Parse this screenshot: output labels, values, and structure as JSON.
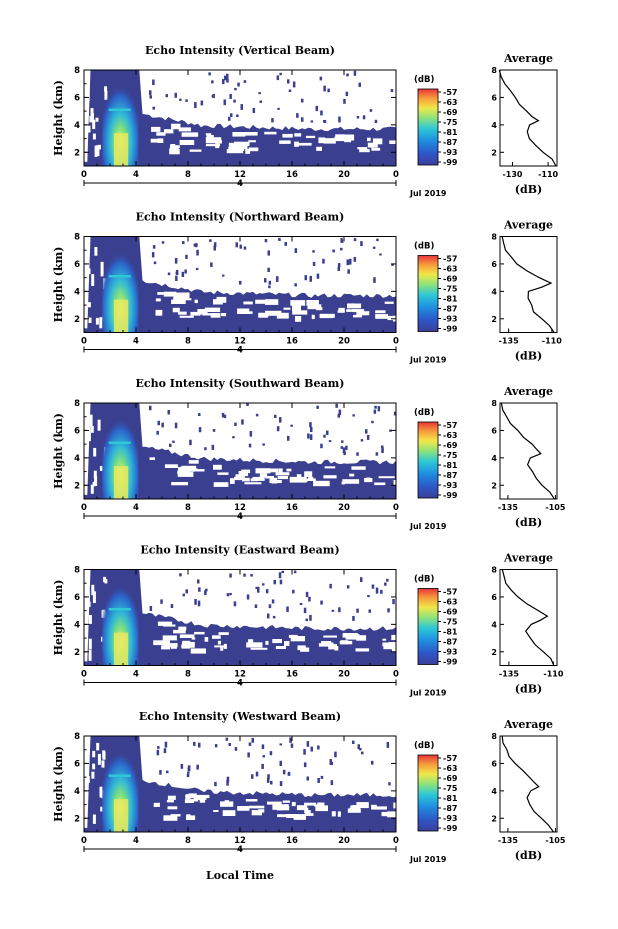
{
  "panels_common": {
    "ylabel": "Height (km)",
    "y_ticks": [
      "2",
      "4",
      "6",
      "8"
    ],
    "x_ticks": [
      "0",
      "4",
      "8",
      "12",
      "16",
      "20",
      "0"
    ],
    "date_center": "4",
    "date_right": "Jul 2019",
    "colorbar_title": "(dB)",
    "colorbar_ticks": [
      "-57",
      "-63",
      "-69",
      "-75",
      "-81",
      "-87",
      "-93",
      "-99"
    ],
    "avg_title": "Average",
    "avg_xlabel": "(dB)"
  },
  "xlabel_bottom": "Local Time",
  "colors": {
    "fill": "#3a3f8f",
    "ink": "#000000",
    "bg": "#ffffff"
  },
  "chart_data": [
    {
      "type": "heatmap",
      "title": "Echo Intensity (Vertical Beam)",
      "xlabel": "Local Time",
      "ylabel": "Height (km)",
      "xlim": [
        0,
        24
      ],
      "ylim": [
        1,
        8
      ],
      "colorbar": {
        "label": "(dB)",
        "range": [
          -99,
          -57
        ]
      },
      "profile": {
        "title": "Average",
        "xlabel": "(dB)",
        "x_ticks": [
          "-130",
          "-110"
        ],
        "xlim": [
          -137,
          -105
        ],
        "height": [
          1,
          1.5,
          2,
          2.5,
          3,
          3.5,
          4,
          4.3,
          4.6,
          5,
          5.5,
          6,
          6.5,
          7,
          7.5,
          8
        ],
        "db": [
          -106,
          -108,
          -113,
          -117,
          -120,
          -122,
          -121,
          -115,
          -119,
          -122,
          -126,
          -128,
          -131,
          -134,
          -136,
          -137
        ]
      }
    },
    {
      "type": "heatmap",
      "title": "Echo Intensity (Northward Beam)",
      "xlabel": "Local Time",
      "ylabel": "Height (km)",
      "xlim": [
        0,
        24
      ],
      "ylim": [
        1,
        8
      ],
      "colorbar": {
        "label": "(dB)",
        "range": [
          -99,
          -57
        ]
      },
      "profile": {
        "title": "Average",
        "xlabel": "(dB)",
        "x_ticks": [
          "-135",
          "-110"
        ],
        "xlim": [
          -140,
          -107
        ],
        "height": [
          1,
          1.5,
          2,
          2.5,
          3,
          3.5,
          4,
          4.3,
          4.6,
          5,
          5.5,
          6,
          6.5,
          7,
          7.5,
          8
        ],
        "db": [
          -109,
          -111,
          -116,
          -120,
          -122,
          -124,
          -123,
          -116,
          -110,
          -117,
          -124,
          -130,
          -134,
          -137,
          -138,
          -139
        ]
      }
    },
    {
      "type": "heatmap",
      "title": "Echo Intensity (Southward Beam)",
      "xlabel": "Local Time",
      "ylabel": "Height (km)",
      "xlim": [
        0,
        24
      ],
      "ylim": [
        1,
        8
      ],
      "colorbar": {
        "label": "(dB)",
        "range": [
          -99,
          -57
        ]
      },
      "profile": {
        "title": "Average",
        "xlabel": "(dB)",
        "x_ticks": [
          "-135",
          "-105"
        ],
        "xlim": [
          -140,
          -104
        ],
        "height": [
          1,
          1.5,
          2,
          2.5,
          3,
          3.5,
          4,
          4.3,
          4.6,
          5,
          5.5,
          6,
          6.5,
          7,
          7.5,
          8
        ],
        "db": [
          -106,
          -109,
          -113,
          -117,
          -120,
          -122,
          -121,
          -114,
          -117,
          -120,
          -125,
          -129,
          -133,
          -136,
          -138,
          -139
        ]
      }
    },
    {
      "type": "heatmap",
      "title": "Echo Intensity (Eastward Beam)",
      "xlabel": "Local Time",
      "ylabel": "Height (km)",
      "xlim": [
        0,
        24
      ],
      "ylim": [
        1,
        8
      ],
      "colorbar": {
        "label": "(dB)",
        "range": [
          -99,
          -57
        ]
      },
      "profile": {
        "title": "Average",
        "xlabel": "(dB)",
        "x_ticks": [
          "-135",
          "-110"
        ],
        "xlim": [
          -140,
          -108
        ],
        "height": [
          1,
          1.5,
          2,
          2.5,
          3,
          3.5,
          4,
          4.3,
          4.6,
          5,
          5.5,
          6,
          6.5,
          7,
          7.5,
          8
        ],
        "db": [
          -110,
          -112,
          -116,
          -120,
          -123,
          -125,
          -123,
          -117,
          -113,
          -119,
          -125,
          -130,
          -134,
          -137,
          -138,
          -139
        ]
      }
    },
    {
      "type": "heatmap",
      "title": "Echo Intensity (Westward Beam)",
      "xlabel": "Local Time",
      "ylabel": "Height (km)",
      "xlim": [
        0,
        24
      ],
      "ylim": [
        1,
        8
      ],
      "colorbar": {
        "label": "(dB)",
        "range": [
          -99,
          -57
        ]
      },
      "profile": {
        "title": "Average",
        "xlabel": "(dB)",
        "x_ticks": [
          "-135",
          "-105"
        ],
        "xlim": [
          -140,
          -104
        ],
        "height": [
          1,
          1.5,
          2,
          2.5,
          3,
          3.5,
          4,
          4.3,
          4.6,
          5,
          5.5,
          6,
          6.5,
          7,
          7.5,
          8
        ],
        "db": [
          -106,
          -109,
          -114,
          -118,
          -121,
          -123,
          -121,
          -115,
          -118,
          -121,
          -126,
          -130,
          -134,
          -136,
          -138,
          -139
        ]
      }
    }
  ]
}
